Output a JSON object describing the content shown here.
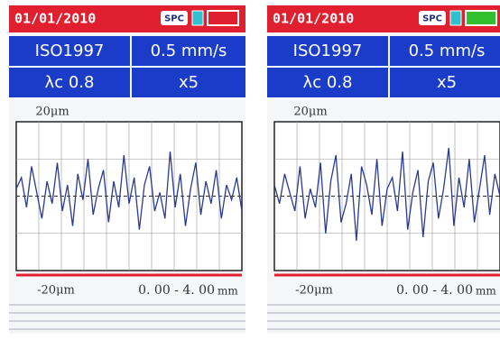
{
  "screens": [
    {
      "date": "01/01/2010",
      "badge": "SPC",
      "standard": "ISO1997",
      "speed": "0.5 mm/s",
      "cutoff": "λc 0.8",
      "magnification": "x5",
      "y_top_label": "20μm",
      "y_bottom_label": "-20μm",
      "x_range": "0. 00 - 4. 00",
      "x_unit": "mm",
      "ylim": [
        -20,
        20
      ],
      "profile": [
        2,
        5,
        -3,
        8,
        1,
        -6,
        4,
        -2,
        9,
        -4,
        3,
        -8,
        6,
        -1,
        10,
        -5,
        2,
        7,
        -7,
        4,
        -3,
        11,
        -2,
        5,
        -9,
        3,
        8,
        -4,
        1,
        -6,
        12,
        -3,
        6,
        -8,
        2,
        9,
        -5,
        4,
        -2,
        7,
        -6,
        3,
        -1,
        5,
        -4
      ]
    },
    {
      "date": "01/01/2010",
      "badge": "SPC",
      "standard": "ISO1997",
      "speed": "0.5 mm/s",
      "cutoff": "λc 0.8",
      "magnification": "x5",
      "y_top_label": "20μm",
      "y_bottom_label": "-20μm",
      "x_range": "0. 00 - 4. 00",
      "x_unit": "mm",
      "ylim": [
        -20,
        20
      ],
      "profile": [
        3,
        -2,
        6,
        1,
        -4,
        8,
        -6,
        2,
        -3,
        9,
        -10,
        4,
        11,
        -7,
        -2,
        6,
        -12,
        8,
        3,
        -5,
        10,
        -8,
        2,
        5,
        -4,
        12,
        -9,
        1,
        7,
        -11,
        4,
        9,
        -6,
        2,
        13,
        -8,
        5,
        -3,
        10,
        -7,
        2,
        11,
        -5,
        6,
        0
      ]
    }
  ]
}
